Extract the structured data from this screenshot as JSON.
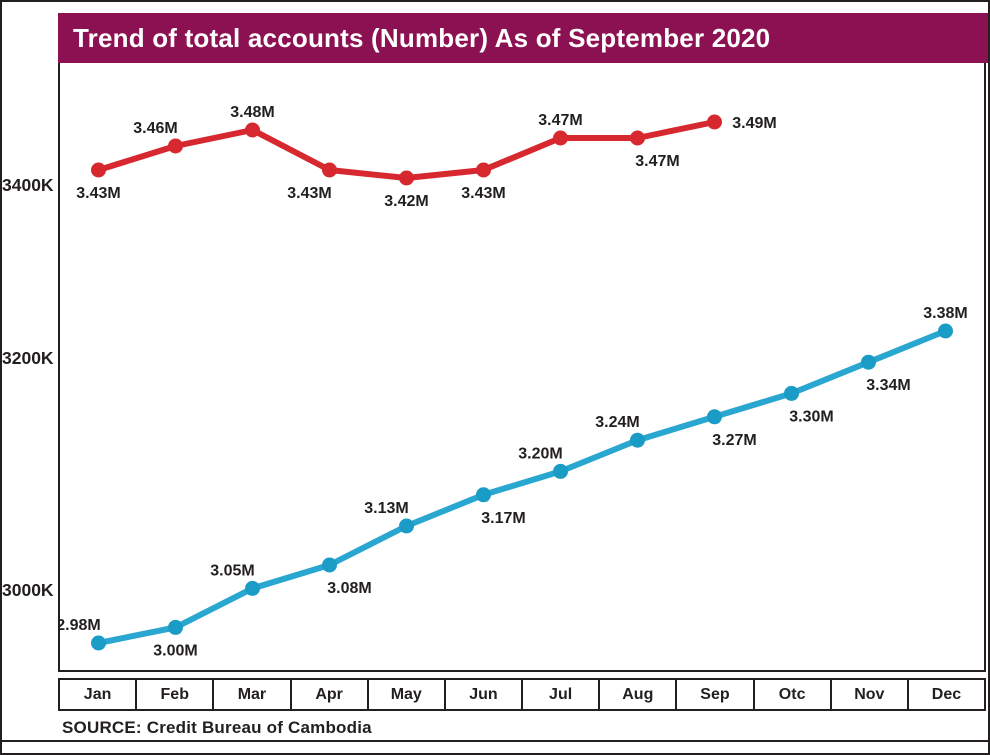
{
  "title": "Trend of total accounts (Number) As of September 2020",
  "source": "SOURCE: Credit Bureau of Cambodia",
  "colors": {
    "header_bg": "#8C1152",
    "header_text": "#FFFFFF",
    "text": "#231F20",
    "border": "#231F20",
    "red_series": "#D7282F",
    "blue_series": "#29A7D1",
    "blue_dot": "#1B9CC6"
  },
  "chart_data": {
    "type": "line",
    "title": "Trend of total accounts (Number) As of September 2020",
    "categories": [
      "Jan",
      "Feb",
      "Mar",
      "Apr",
      "May",
      "Jun",
      "Jul",
      "Aug",
      "Sep",
      "Otc",
      "Nov",
      "Dec"
    ],
    "y_axis_tick_labels": [
      "3400K",
      "3200K",
      "3000K"
    ],
    "grid": false,
    "legend": false,
    "series": [
      {
        "id": "red-line-top",
        "color": "#D7282F",
        "dot_color": "#D7282F",
        "values_millions": [
          3.43,
          3.46,
          3.48,
          3.43,
          3.42,
          3.43,
          3.47,
          3.47,
          3.49
        ],
        "point_labels": [
          "3.43M",
          "3.46M",
          "3.48M",
          "3.43M",
          "3.42M",
          "3.43M",
          "3.47M",
          "3.47M",
          "3.49M"
        ],
        "label_placement": [
          "below",
          "above-left",
          "above",
          "below-left",
          "below",
          "below",
          "above",
          "below-right",
          "right"
        ]
      },
      {
        "id": "blue-line-bottom",
        "color": "#29A7D1",
        "dot_color": "#1B9CC6",
        "values_millions": [
          2.98,
          3.0,
          3.05,
          3.08,
          3.13,
          3.17,
          3.2,
          3.24,
          3.27,
          3.3,
          3.34,
          3.38
        ],
        "point_labels": [
          "2.98M",
          "3.00M",
          "3.05M",
          "3.08M",
          "3.13M",
          "3.17M",
          "3.20M",
          "3.24M",
          "3.27M",
          "3.30M",
          "3.34M",
          "3.38M"
        ],
        "label_placement": [
          "above-left",
          "below",
          "above-left",
          "below-right",
          "above-left",
          "below-right",
          "above-left",
          "above-left",
          "below-right",
          "below-right",
          "below-right",
          "above"
        ]
      }
    ]
  }
}
